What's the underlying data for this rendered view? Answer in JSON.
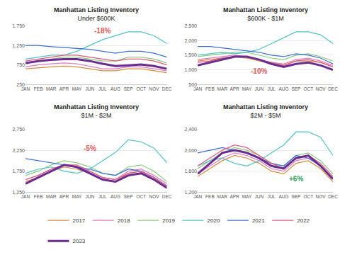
{
  "chart_data": [
    {
      "type": "line",
      "title": "Manhattan Listing Inventory",
      "subtitle": "Under $600K",
      "categories": [
        "JAN",
        "FEB",
        "MAR",
        "APR",
        "MAY",
        "JUN",
        "JUL",
        "AUG",
        "SEP",
        "OCT",
        "NOV",
        "DEC"
      ],
      "ylim": [
        250,
        1750
      ],
      "yticks": [
        250,
        750,
        {
          "value": 1250,
          "label": "1,250"
        },
        {
          "value": 1750,
          "label": "1,750"
        }
      ],
      "grid": true,
      "legend": "bottom",
      "annotations": [
        {
          "text": "-18%",
          "x": "JUL",
          "y": 1620,
          "color": "#e05a5a"
        }
      ],
      "series": [
        {
          "name": "2017",
          "color": "#d98b3a",
          "values": [
            650,
            680,
            700,
            720,
            700,
            650,
            600,
            600,
            650,
            650,
            600,
            550
          ]
        },
        {
          "name": "2018",
          "color": "#e377c2",
          "values": [
            700,
            750,
            780,
            800,
            780,
            720,
            650,
            650,
            700,
            700,
            650,
            600
          ]
        },
        {
          "name": "2019",
          "color": "#8cc97f",
          "values": [
            800,
            850,
            900,
            950,
            950,
            900,
            850,
            850,
            950,
            950,
            900,
            800
          ]
        },
        {
          "name": "2020",
          "color": "#4fc3c8",
          "values": [
            900,
            950,
            1000,
            1000,
            1100,
            1250,
            1400,
            1500,
            1600,
            1600,
            1500,
            1300
          ]
        },
        {
          "name": "2021",
          "color": "#3b6fd6",
          "values": [
            1250,
            1250,
            1220,
            1200,
            1180,
            1150,
            1100,
            1050,
            1100,
            1100,
            1050,
            950
          ]
        },
        {
          "name": "2022",
          "color": "#e05a7a",
          "values": [
            850,
            900,
            950,
            1000,
            1000,
            950,
            900,
            850,
            900,
            900,
            850,
            750
          ]
        },
        {
          "name": "2023",
          "color": "#6a2c91",
          "line_style": "thick",
          "values": [
            800,
            850,
            880,
            900,
            900,
            850,
            780,
            720,
            740,
            760,
            720,
            650
          ]
        }
      ]
    },
    {
      "type": "line",
      "title": "Manhattan Listing Inventory",
      "subtitle": "$600K - $1M",
      "categories": [
        "JAN",
        "FEB",
        "MAR",
        "APR",
        "MAY",
        "JUN",
        "JUL",
        "AUG",
        "SEP",
        "OCT",
        "NOV",
        "DEC"
      ],
      "ylim": [
        500,
        2500
      ],
      "yticks": [
        500,
        {
          "value": 1000,
          "label": "1,000"
        },
        {
          "value": 1500,
          "label": "1,500"
        },
        {
          "value": 2000,
          "label": "2,000"
        },
        {
          "value": 2500,
          "label": "2,500"
        }
      ],
      "grid": true,
      "legend": "bottom",
      "annotations": [
        {
          "text": "-10%",
          "x": "JUN",
          "y": 950,
          "color": "#e05a5a"
        }
      ],
      "series": [
        {
          "name": "2017",
          "color": "#d98b3a",
          "values": [
            1300,
            1350,
            1400,
            1450,
            1400,
            1300,
            1200,
            1150,
            1300,
            1300,
            1250,
            1100
          ]
        },
        {
          "name": "2018",
          "color": "#e377c2",
          "values": [
            1350,
            1400,
            1450,
            1500,
            1450,
            1350,
            1250,
            1200,
            1350,
            1400,
            1300,
            1150
          ]
        },
        {
          "name": "2019",
          "color": "#8cc97f",
          "values": [
            1450,
            1500,
            1550,
            1600,
            1600,
            1500,
            1400,
            1350,
            1500,
            1550,
            1450,
            1300
          ]
        },
        {
          "name": "2020",
          "color": "#4fc3c8",
          "values": [
            1500,
            1550,
            1600,
            1550,
            1600,
            1700,
            1900,
            2100,
            2300,
            2300,
            2200,
            1900
          ]
        },
        {
          "name": "2021",
          "color": "#3b6fd6",
          "values": [
            1800,
            1800,
            1750,
            1700,
            1650,
            1600,
            1500,
            1450,
            1550,
            1500,
            1400,
            1200
          ]
        },
        {
          "name": "2022",
          "color": "#e05a7a",
          "values": [
            1250,
            1300,
            1400,
            1450,
            1450,
            1350,
            1250,
            1150,
            1300,
            1350,
            1250,
            1100
          ]
        },
        {
          "name": "2023",
          "color": "#6a2c91",
          "line_style": "thick",
          "values": [
            1150,
            1250,
            1350,
            1450,
            1450,
            1350,
            1200,
            1100,
            1200,
            1250,
            1150,
            1000
          ]
        }
      ]
    },
    {
      "type": "line",
      "title": "Manhattan Listing Inventory",
      "subtitle": "$1M - $2M",
      "categories": [
        "JAN",
        "FEB",
        "MAR",
        "APR",
        "MAY",
        "JUN",
        "JUL",
        "AUG",
        "SEP",
        "OCT",
        "NOV",
        "DEC"
      ],
      "ylim": [
        1250,
        2750
      ],
      "yticks": [
        {
          "value": 1250,
          "label": "1,250"
        },
        {
          "value": 1750,
          "label": "1,750"
        },
        {
          "value": 2250,
          "label": "2,250"
        },
        {
          "value": 2750,
          "label": "2,750"
        }
      ],
      "grid": true,
      "legend": "bottom",
      "annotations": [
        {
          "text": "-5%",
          "x": "JUN",
          "y": 2300,
          "color": "#e05a5a"
        }
      ],
      "series": [
        {
          "name": "2017",
          "color": "#d98b3a",
          "values": [
            1500,
            1600,
            1750,
            1850,
            1800,
            1700,
            1550,
            1500,
            1700,
            1750,
            1600,
            1400
          ]
        },
        {
          "name": "2018",
          "color": "#e377c2",
          "values": [
            1550,
            1650,
            1800,
            1900,
            1850,
            1750,
            1600,
            1550,
            1750,
            1800,
            1650,
            1450
          ]
        },
        {
          "name": "2019",
          "color": "#8cc97f",
          "values": [
            1650,
            1750,
            1900,
            2000,
            1950,
            1850,
            1700,
            1650,
            1850,
            1900,
            1750,
            1500
          ]
        },
        {
          "name": "2020",
          "color": "#4fc3c8",
          "values": [
            1700,
            1800,
            1850,
            1750,
            1700,
            1800,
            2000,
            2200,
            2500,
            2450,
            2300,
            1950
          ]
        },
        {
          "name": "2021",
          "color": "#3b6fd6",
          "values": [
            2050,
            2000,
            1950,
            1900,
            1850,
            1800,
            1700,
            1650,
            1800,
            1750,
            1600,
            1400
          ]
        },
        {
          "name": "2022",
          "color": "#e05a7a",
          "values": [
            1550,
            1650,
            1800,
            1900,
            1900,
            1750,
            1600,
            1550,
            1700,
            1750,
            1600,
            1400
          ]
        },
        {
          "name": "2023",
          "color": "#6a2c91",
          "line_style": "thick",
          "values": [
            1450,
            1600,
            1750,
            1900,
            1850,
            1700,
            1550,
            1500,
            1650,
            1700,
            1550,
            1350
          ]
        }
      ]
    },
    {
      "type": "line",
      "title": "Manhattan Listing Inventory",
      "subtitle": "$2M - $5M",
      "categories": [
        "JAN",
        "FEB",
        "MAR",
        "APR",
        "MAY",
        "JUN",
        "JUL",
        "AUG",
        "SEP",
        "OCT",
        "NOV",
        "DEC"
      ],
      "ylim": [
        1200,
        2400
      ],
      "yticks": [
        {
          "value": 1200,
          "label": "1,200"
        },
        {
          "value": 1600,
          "label": "1,600"
        },
        {
          "value": 2000,
          "label": "2,000"
        },
        {
          "value": 2400,
          "label": "2,400"
        }
      ],
      "grid": true,
      "legend": "bottom",
      "annotations": [
        {
          "text": "+6%",
          "x": "SEP",
          "y": 1450,
          "color": "#2e9e5b"
        }
      ],
      "series": [
        {
          "name": "2017",
          "color": "#d98b3a",
          "values": [
            1500,
            1650,
            1800,
            1900,
            1850,
            1750,
            1600,
            1550,
            1750,
            1800,
            1650,
            1400
          ]
        },
        {
          "name": "2018",
          "color": "#e377c2",
          "values": [
            1550,
            1700,
            1850,
            1950,
            1900,
            1800,
            1650,
            1600,
            1800,
            1850,
            1700,
            1450
          ]
        },
        {
          "name": "2019",
          "color": "#8cc97f",
          "values": [
            1650,
            1800,
            1950,
            2050,
            2000,
            1900,
            1750,
            1700,
            1900,
            1950,
            1800,
            1550
          ]
        },
        {
          "name": "2020",
          "color": "#4fc3c8",
          "values": [
            1700,
            1800,
            1850,
            1750,
            1700,
            1800,
            1950,
            2100,
            2350,
            2350,
            2250,
            1900
          ]
        },
        {
          "name": "2021",
          "color": "#3b6fd6",
          "values": [
            1950,
            2000,
            2050,
            2000,
            1950,
            1850,
            1750,
            1700,
            1900,
            1850,
            1700,
            1450
          ]
        },
        {
          "name": "2022",
          "color": "#e05a7a",
          "values": [
            1700,
            1850,
            2000,
            2100,
            2050,
            1900,
            1750,
            1650,
            1850,
            1900,
            1750,
            1500
          ]
        },
        {
          "name": "2023",
          "color": "#6a2c91",
          "line_style": "thick",
          "values": [
            1550,
            1750,
            1950,
            2000,
            1950,
            1850,
            1700,
            1650,
            1850,
            1900,
            1700,
            1450
          ]
        }
      ]
    }
  ]
}
